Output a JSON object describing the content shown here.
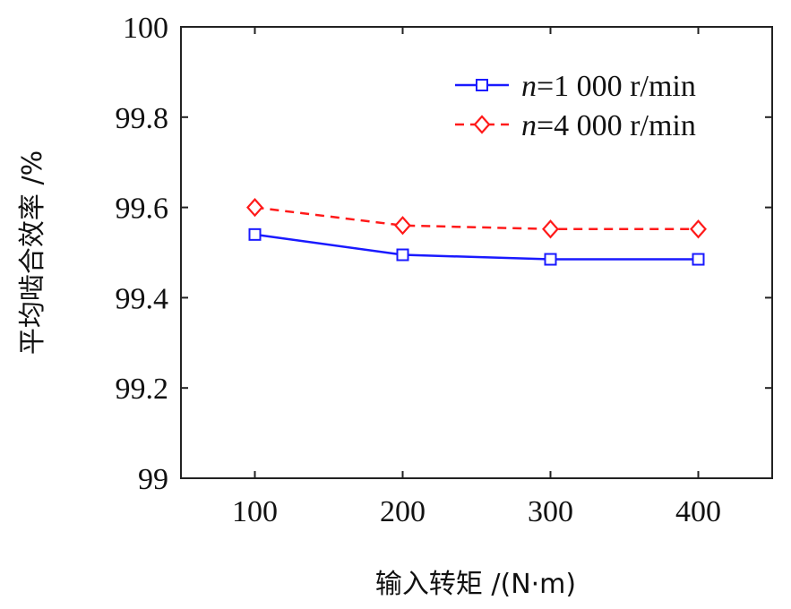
{
  "chart_data": {
    "type": "line",
    "x": [
      100,
      200,
      300,
      400
    ],
    "xticks": [
      "100",
      "200",
      "300",
      "400"
    ],
    "yticks": [
      "100",
      "99.8",
      "99.6",
      "99.4",
      "99.2",
      "99"
    ],
    "xlabel": "输入转矩 /(N·m)",
    "ylabel": "平均啮合效率 /%",
    "xlim": [
      50,
      450
    ],
    "ylim": [
      99,
      100
    ],
    "grid": false,
    "legend_position": "top-right",
    "series": [
      {
        "name_prefix": "n",
        "name_suffix": "=1 000  r/min",
        "values": [
          99.54,
          99.495,
          99.485,
          99.485
        ],
        "color": "#1a1aff",
        "line_style": "solid",
        "marker": "square"
      },
      {
        "name_prefix": "n",
        "name_suffix": "=4 000  r/min",
        "values": [
          99.6,
          99.56,
          99.552,
          99.552
        ],
        "color": "#ff1a1a",
        "line_style": "dashed",
        "marker": "diamond"
      }
    ]
  }
}
